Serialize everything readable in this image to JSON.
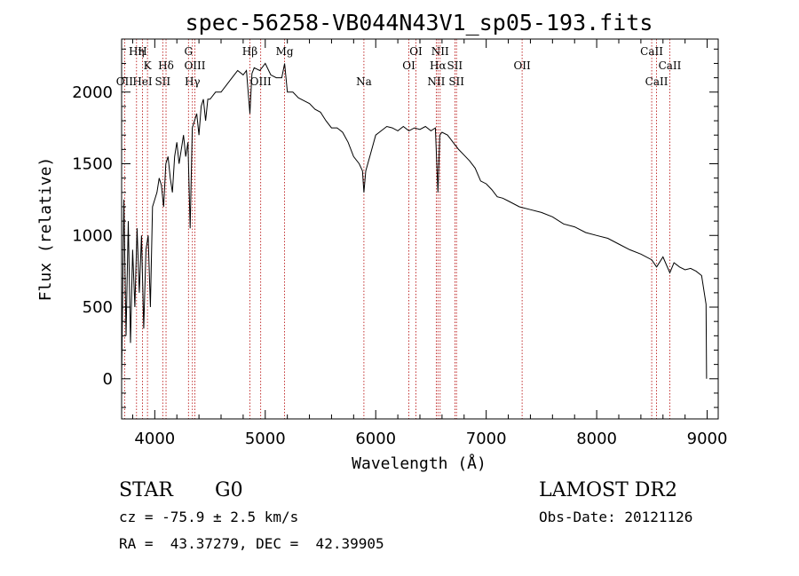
{
  "chart_data": {
    "type": "line",
    "title": "spec-56258-VB044N43V1_sp05-193.fits",
    "xlabel": "Wavelength (Å)",
    "ylabel": "Flux (relative)",
    "xlim": [
      3700,
      9100
    ],
    "ylim": [
      -280,
      2370
    ],
    "xticks": [
      4000,
      5000,
      6000,
      7000,
      8000,
      9000
    ],
    "yticks": [
      0,
      500,
      1000,
      1500,
      2000
    ],
    "grid": false,
    "series": [
      {
        "x": [
          3700,
          3720,
          3740,
          3760,
          3780,
          3800,
          3820,
          3840,
          3860,
          3880,
          3900,
          3920,
          3940,
          3960,
          3980,
          4000,
          4020,
          4040,
          4060,
          4080,
          4100,
          4120,
          4140,
          4160,
          4180,
          4200,
          4220,
          4240,
          4260,
          4280,
          4300,
          4320,
          4340,
          4360,
          4380,
          4400,
          4420,
          4440,
          4460,
          4480,
          4500,
          4550,
          4600,
          4650,
          4700,
          4750,
          4800,
          4830,
          4861,
          4880,
          4900,
          4950,
          5000,
          5050,
          5100,
          5150,
          5175,
          5200,
          5250,
          5300,
          5350,
          5400,
          5450,
          5500,
          5550,
          5600,
          5650,
          5700,
          5750,
          5800,
          5850,
          5880,
          5893,
          5910,
          5950,
          6000,
          6050,
          6100,
          6150,
          6200,
          6250,
          6300,
          6350,
          6400,
          6450,
          6500,
          6540,
          6563,
          6580,
          6600,
          6650,
          6700,
          6750,
          6800,
          6850,
          6900,
          6950,
          7000,
          7050,
          7100,
          7150,
          7200,
          7300,
          7400,
          7500,
          7600,
          7700,
          7800,
          7900,
          8000,
          8100,
          8200,
          8300,
          8400,
          8498,
          8542,
          8600,
          8662,
          8700,
          8750,
          8800,
          8850,
          8900,
          8950,
          8990,
          8995
        ],
        "y": [
          0,
          1250,
          300,
          1100,
          250,
          900,
          500,
          1050,
          600,
          1000,
          350,
          900,
          1000,
          500,
          1200,
          1250,
          1300,
          1400,
          1350,
          1200,
          1500,
          1550,
          1400,
          1300,
          1550,
          1650,
          1500,
          1600,
          1700,
          1550,
          1650,
          1050,
          1750,
          1800,
          1850,
          1700,
          1900,
          1950,
          1800,
          1950,
          1950,
          2000,
          2000,
          2050,
          2100,
          2150,
          2120,
          2150,
          1850,
          2130,
          2170,
          2150,
          2200,
          2120,
          2100,
          2100,
          2200,
          2000,
          2000,
          1960,
          1940,
          1920,
          1880,
          1860,
          1800,
          1750,
          1750,
          1720,
          1650,
          1550,
          1500,
          1450,
          1300,
          1450,
          1560,
          1700,
          1730,
          1760,
          1750,
          1730,
          1760,
          1730,
          1750,
          1740,
          1760,
          1730,
          1750,
          1300,
          1700,
          1720,
          1700,
          1650,
          1600,
          1560,
          1520,
          1470,
          1380,
          1360,
          1320,
          1270,
          1260,
          1240,
          1200,
          1180,
          1160,
          1130,
          1080,
          1060,
          1020,
          1000,
          980,
          940,
          900,
          870,
          830,
          780,
          850,
          740,
          810,
          780,
          760,
          770,
          750,
          720,
          520,
          0
        ]
      }
    ]
  },
  "emission_lines": [
    {
      "label": "OII",
      "wave": 3727,
      "row": 2
    },
    {
      "label": "Hη",
      "wave": 3835,
      "row": 0
    },
    {
      "label": "H",
      "wave": 3889,
      "row": 0
    },
    {
      "label": "HeI",
      "wave": 3889,
      "row": 2
    },
    {
      "label": "K",
      "wave": 3934,
      "row": 1
    },
    {
      "label": "SII",
      "wave": 4072,
      "row": 2
    },
    {
      "label": "Hδ",
      "wave": 4102,
      "row": 1
    },
    {
      "label": "G",
      "wave": 4305,
      "row": 0
    },
    {
      "label": "OIII",
      "wave": 4363,
      "row": 1
    },
    {
      "label": "Hγ",
      "wave": 4341,
      "row": 2
    },
    {
      "label": "Hβ",
      "wave": 4861,
      "row": 0
    },
    {
      "label": "OIII",
      "wave": 4959,
      "row": 2
    },
    {
      "label": "Mg",
      "wave": 5175,
      "row": 0
    },
    {
      "label": "Na",
      "wave": 5893,
      "row": 2
    },
    {
      "label": "OI",
      "wave": 6364,
      "row": 0
    },
    {
      "label": "OI",
      "wave": 6300,
      "row": 1
    },
    {
      "label": "NII",
      "wave": 6583,
      "row": 0
    },
    {
      "label": "Hα",
      "wave": 6563,
      "row": 1
    },
    {
      "label": "SII",
      "wave": 6716,
      "row": 1
    },
    {
      "label": "NII",
      "wave": 6548,
      "row": 2
    },
    {
      "label": "SII",
      "wave": 6731,
      "row": 2
    },
    {
      "label": "OII",
      "wave": 7325,
      "row": 1
    },
    {
      "label": "CaII",
      "wave": 8498,
      "row": 0
    },
    {
      "label": "CaII",
      "wave": 8662,
      "row": 1
    },
    {
      "label": "CaII",
      "wave": 8542,
      "row": 2
    }
  ],
  "info": {
    "class_label": "STAR",
    "subclass": "G0",
    "redshift_text": "cz = -75.9 ± 2.5 km/s",
    "coords_text": "RA =  43.37279, DEC =  42.39905",
    "survey": "LAMOST DR2",
    "obs_date": "Obs-Date: 20121126"
  }
}
